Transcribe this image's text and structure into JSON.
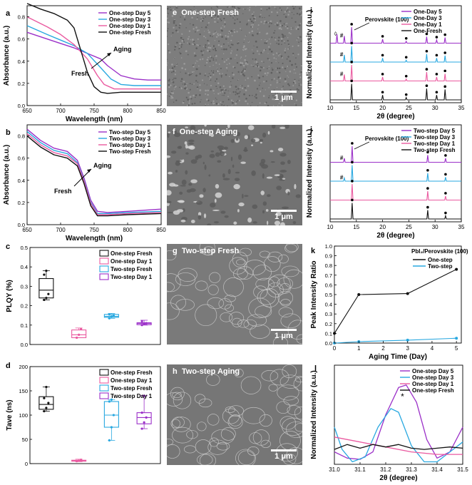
{
  "colors": {
    "day5": "#9b30c8",
    "day3": "#29a8e0",
    "day1": "#ea5aa0",
    "fresh": "#111111"
  },
  "chart_data": [
    {
      "id": "a",
      "type": "line",
      "panel_letter": "a",
      "xlabel": "Wavelength (nm)",
      "ylabel": "Absorbance (a.u.)",
      "xlim": [
        650,
        850
      ],
      "ylim": [
        0,
        0.9
      ],
      "xticks": [
        650,
        700,
        750,
        800,
        850
      ],
      "yticks": [
        0.0,
        0.2,
        0.4,
        0.6,
        0.8
      ],
      "legend": [
        "One-step Day 5",
        "One-step Day 3",
        "One-step Day 1",
        "One-step Fresh"
      ],
      "annotations": [
        "Aging",
        "Fresh"
      ],
      "series": [
        {
          "name": "One-step Day 5",
          "color_key": "day5",
          "x": [
            650,
            680,
            700,
            720,
            740,
            760,
            770,
            790,
            810,
            830,
            850
          ],
          "y": [
            0.66,
            0.6,
            0.56,
            0.52,
            0.47,
            0.42,
            0.36,
            0.27,
            0.24,
            0.23,
            0.23
          ]
        },
        {
          "name": "One-step Day 3",
          "color_key": "day3",
          "x": [
            650,
            680,
            700,
            720,
            740,
            760,
            775,
            790,
            810,
            830,
            850
          ],
          "y": [
            0.72,
            0.64,
            0.59,
            0.54,
            0.47,
            0.34,
            0.24,
            0.19,
            0.18,
            0.18,
            0.18
          ]
        },
        {
          "name": "One-step Day 1",
          "color_key": "day1",
          "x": [
            650,
            680,
            700,
            720,
            740,
            755,
            765,
            780,
            800,
            820,
            850
          ],
          "y": [
            0.8,
            0.71,
            0.64,
            0.55,
            0.42,
            0.27,
            0.19,
            0.15,
            0.15,
            0.15,
            0.15
          ]
        },
        {
          "name": "One-step Fresh",
          "color_key": "fresh",
          "x": [
            650,
            670,
            690,
            710,
            720,
            730,
            740,
            750,
            760,
            770,
            790,
            820,
            850
          ],
          "y": [
            0.92,
            0.87,
            0.83,
            0.77,
            0.7,
            0.5,
            0.3,
            0.17,
            0.12,
            0.11,
            0.12,
            0.12,
            0.12
          ]
        }
      ]
    },
    {
      "id": "b",
      "type": "line",
      "panel_letter": "b",
      "xlabel": "Wavelength (nm)",
      "ylabel": "Absorbance (a.u.)",
      "xlim": [
        650,
        850
      ],
      "ylim": [
        0,
        0.9
      ],
      "xticks": [
        650,
        700,
        750,
        800,
        850
      ],
      "yticks": [
        0.0,
        0.2,
        0.4,
        0.6,
        0.8
      ],
      "legend": [
        "Two-step Day 5",
        "Two-step Day 3",
        "Two-step Day 1",
        "Two-step Fresh"
      ],
      "annotations": [
        "Aging",
        "Fresh"
      ],
      "series": [
        {
          "name": "Two-step Day 5",
          "color_key": "day5",
          "x": [
            650,
            670,
            690,
            710,
            725,
            735,
            745,
            755,
            770,
            800,
            850
          ],
          "y": [
            0.86,
            0.76,
            0.69,
            0.66,
            0.58,
            0.42,
            0.22,
            0.12,
            0.11,
            0.12,
            0.14
          ]
        },
        {
          "name": "Two-step Day 3",
          "color_key": "day3",
          "x": [
            650,
            670,
            690,
            710,
            725,
            735,
            745,
            755,
            770,
            800,
            850
          ],
          "y": [
            0.84,
            0.74,
            0.67,
            0.64,
            0.56,
            0.4,
            0.2,
            0.1,
            0.1,
            0.11,
            0.12
          ]
        },
        {
          "name": "Two-step Day 1",
          "color_key": "day1",
          "x": [
            650,
            670,
            690,
            710,
            725,
            735,
            745,
            755,
            770,
            800,
            850
          ],
          "y": [
            0.82,
            0.72,
            0.65,
            0.62,
            0.55,
            0.39,
            0.19,
            0.09,
            0.09,
            0.1,
            0.11
          ]
        },
        {
          "name": "Two-step Fresh",
          "color_key": "fresh",
          "x": [
            650,
            670,
            690,
            710,
            725,
            735,
            745,
            755,
            770,
            800,
            850
          ],
          "y": [
            0.8,
            0.7,
            0.63,
            0.6,
            0.53,
            0.37,
            0.17,
            0.08,
            0.08,
            0.09,
            0.1
          ]
        }
      ]
    },
    {
      "id": "c",
      "type": "box",
      "panel_letter": "c",
      "ylabel": "PLQY (%)",
      "ylim": [
        0,
        0.5
      ],
      "yticks": [
        0.0,
        0.1,
        0.2,
        0.3,
        0.4,
        0.5
      ],
      "legend": [
        "One-step Fresh",
        "One-step Day 1",
        "Two-step Fresh",
        "Two-step Day 1"
      ],
      "boxes": [
        {
          "name": "One-step Fresh",
          "color_key": "fresh",
          "whisker_low": 0.23,
          "q1": 0.24,
          "median": 0.28,
          "q3": 0.34,
          "whisker_high": 0.38,
          "points": [
            0.23,
            0.24,
            0.26,
            0.36,
            0.38
          ]
        },
        {
          "name": "One-step Day 1",
          "color_key": "day1",
          "whisker_low": 0.035,
          "q1": 0.035,
          "median": 0.05,
          "q3": 0.075,
          "whisker_high": 0.085,
          "points": [
            0.035,
            0.05,
            0.08
          ]
        },
        {
          "name": "Two-step Fresh",
          "color_key": "day3",
          "whisker_low": 0.135,
          "q1": 0.14,
          "median": 0.145,
          "q3": 0.155,
          "whisker_high": 0.16,
          "points": [
            0.135,
            0.145,
            0.15,
            0.155
          ]
        },
        {
          "name": "Two-step Day 1",
          "color_key": "day5",
          "whisker_low": 0.1,
          "q1": 0.102,
          "median": 0.108,
          "q3": 0.112,
          "whisker_high": 0.125,
          "points": [
            0.1,
            0.105,
            0.11,
            0.12
          ]
        }
      ]
    },
    {
      "id": "d",
      "type": "box",
      "panel_letter": "d",
      "ylabel": "Tave (ns)",
      "ylim": [
        0,
        200
      ],
      "yticks": [
        0,
        50,
        100,
        150,
        200
      ],
      "legend": [
        "One-step Fresh",
        "One-step Day 1",
        "Two-step Fresh",
        "Two-step Day 1"
      ],
      "boxes": [
        {
          "name": "One-step Fresh",
          "color_key": "fresh",
          "whisker_low": 108,
          "q1": 112,
          "median": 122,
          "q3": 138,
          "whisker_high": 158,
          "points": [
            108,
            115,
            125,
            135,
            158
          ]
        },
        {
          "name": "One-step Day 1",
          "color_key": "day1",
          "whisker_low": 4,
          "q1": 5,
          "median": 6,
          "q3": 7,
          "whisker_high": 9,
          "points": [
            5,
            6,
            8
          ]
        },
        {
          "name": "Two-step Fresh",
          "color_key": "day3",
          "whisker_low": 48,
          "q1": 75,
          "median": 100,
          "q3": 128,
          "whisker_high": 132,
          "points": [
            48,
            75,
            100,
            128,
            132
          ]
        },
        {
          "name": "Two-step Day 1",
          "color_key": "day5",
          "whisker_low": 72,
          "q1": 82,
          "median": 95,
          "q3": 105,
          "whisker_high": 140,
          "points": [
            72,
            85,
            95,
            105,
            140
          ]
        }
      ]
    },
    {
      "id": "i",
      "type": "xrd",
      "panel_letter": "i",
      "xlabel": "2θ (degree)",
      "ylabel": "Normalized Intensity (a.u.)",
      "xlim": [
        10,
        35
      ],
      "xticks": [
        10,
        15,
        20,
        25,
        30,
        35
      ],
      "legend": [
        "One-Day 5",
        "One-Day 3",
        "One-Day 1",
        "One-Fresh"
      ],
      "annotations": [
        "Perovskite (100)",
        "◊",
        "#"
      ],
      "series": [
        {
          "name": "One-Day 5",
          "color_key": "day5",
          "x": [
            11.3,
            12.7,
            14.1,
            20.0,
            24.5,
            28.4,
            30.3,
            31.9
          ],
          "y": [
            0.55,
            0.45,
            1.0,
            0.25,
            0.12,
            0.4,
            0.2,
            0.35
          ]
        },
        {
          "name": "One-Day 3",
          "color_key": "day3",
          "x": [
            12.7,
            14.1,
            20.0,
            24.5,
            28.4,
            30.3,
            31.9
          ],
          "y": [
            0.45,
            1.0,
            0.25,
            0.12,
            0.5,
            0.25,
            0.4
          ]
        },
        {
          "name": "One-Day 1",
          "color_key": "day1",
          "x": [
            12.7,
            14.1,
            20.0,
            24.5,
            28.4,
            30.3,
            31.9
          ],
          "y": [
            0.4,
            1.0,
            0.25,
            0.12,
            0.55,
            0.25,
            0.45
          ]
        },
        {
          "name": "One-Fresh",
          "color_key": "fresh",
          "x": [
            14.1,
            20.0,
            24.5,
            28.4,
            30.3,
            31.9
          ],
          "y": [
            1.0,
            0.3,
            0.15,
            0.7,
            0.3,
            0.65
          ]
        }
      ]
    },
    {
      "id": "j",
      "type": "xrd",
      "panel_letter": "j",
      "xlabel": "2θ (degree)",
      "ylabel": "Normalized Intensity (a.u.)",
      "xlim": [
        10,
        35
      ],
      "xticks": [
        10,
        15,
        20,
        25,
        30,
        35
      ],
      "legend": [
        "Two-step Day 5",
        "Two-step Day 3",
        "Two-step Day 1",
        "Two-step Fresh"
      ],
      "annotations": [
        "Perovskite (100)",
        "#"
      ],
      "series": [
        {
          "name": "Two-step Day 5",
          "color_key": "day5",
          "x": [
            12.7,
            14.2,
            28.6,
            32.0
          ],
          "y": [
            0.25,
            1.0,
            0.45,
            0.25
          ]
        },
        {
          "name": "Two-step Day 3",
          "color_key": "day3",
          "x": [
            12.7,
            14.2,
            28.6,
            32.0
          ],
          "y": [
            0.2,
            1.0,
            0.5,
            0.25
          ]
        },
        {
          "name": "Two-step Day 1",
          "color_key": "day1",
          "x": [
            14.2,
            28.6,
            32.0
          ],
          "y": [
            1.0,
            0.55,
            0.25
          ]
        },
        {
          "name": "Two-step Fresh",
          "color_key": "fresh",
          "x": [
            14.2,
            28.6,
            32.0
          ],
          "y": [
            1.0,
            0.55,
            0.2
          ]
        }
      ]
    },
    {
      "id": "k",
      "type": "line",
      "panel_letter": "k",
      "xlabel": "Aging Time (Day)",
      "ylabel": "Peak Intensity Ratio",
      "xlim": [
        0,
        5.2
      ],
      "ylim": [
        0,
        1.0
      ],
      "xticks": [
        0,
        1,
        2,
        3,
        4,
        5
      ],
      "yticks": [
        0.0,
        0.1,
        0.2,
        0.3,
        0.4,
        0.5,
        0.6,
        0.7,
        0.8,
        0.9,
        1.0
      ],
      "legend_title": "PbI₂/Perovskite (100)",
      "legend": [
        "One-step",
        "Two-step"
      ],
      "series": [
        {
          "name": "One-step",
          "color_key": "fresh",
          "x": [
            0,
            1,
            3,
            5
          ],
          "y": [
            0.1,
            0.5,
            0.51,
            0.76
          ]
        },
        {
          "name": "Two-step",
          "color_key": "day3",
          "x": [
            0,
            1,
            3,
            5
          ],
          "y": [
            0.0,
            0.015,
            0.03,
            0.05
          ]
        }
      ]
    },
    {
      "id": "l",
      "type": "line",
      "panel_letter": "l",
      "xlabel": "2θ (degree)",
      "ylabel": "Normalized Intensity (a.u.)",
      "xlim": [
        31.0,
        31.5
      ],
      "xticks": [
        31.0,
        31.1,
        31.2,
        31.3,
        31.4,
        31.5
      ],
      "annotations": [
        "*"
      ],
      "legend": [
        "One-step Day 5",
        "One-step Day 3",
        "One-step Day 1",
        "One-step Fresh"
      ],
      "series": [
        {
          "name": "One-step Day 5",
          "color_key": "day5",
          "x": [
            31.0,
            31.05,
            31.1,
            31.15,
            31.2,
            31.25,
            31.28,
            31.32,
            31.36,
            31.4,
            31.45,
            31.5
          ],
          "y": [
            0.1,
            0.05,
            0.04,
            0.1,
            0.4,
            0.62,
            0.64,
            0.5,
            0.2,
            0.05,
            0.1,
            0.3
          ]
        },
        {
          "name": "One-step Day 3",
          "color_key": "day3",
          "x": [
            31.0,
            31.03,
            31.07,
            31.12,
            31.17,
            31.22,
            31.25,
            31.3,
            31.35,
            31.4,
            31.45,
            31.5
          ],
          "y": [
            0.3,
            0.12,
            0.02,
            0.06,
            0.3,
            0.45,
            0.42,
            0.15,
            0.02,
            0.02,
            0.1,
            0.18
          ]
        },
        {
          "name": "One-step Day 1",
          "color_key": "day1",
          "x": [
            31.0,
            31.1,
            31.2,
            31.3,
            31.4,
            31.5
          ],
          "y": [
            0.22,
            0.18,
            0.14,
            0.1,
            0.08,
            0.08
          ]
        },
        {
          "name": "One-step Fresh",
          "color_key": "fresh",
          "x": [
            31.0,
            31.05,
            31.1,
            31.15,
            31.2,
            31.25,
            31.3,
            31.35,
            31.4,
            31.45,
            31.5
          ],
          "y": [
            0.12,
            0.16,
            0.13,
            0.16,
            0.14,
            0.16,
            0.13,
            0.12,
            0.13,
            0.14,
            0.13
          ]
        }
      ]
    }
  ],
  "sem_images": [
    {
      "letter": "e",
      "title": "One-step Fresh",
      "scale": "1 μm"
    },
    {
      "letter": "f",
      "title": "One-step Aging",
      "scale": "1 μm"
    },
    {
      "letter": "g",
      "title": "Two-step Fresh",
      "scale": "1 μm"
    },
    {
      "letter": "h",
      "title": "Two-step Aging",
      "scale": "1 μm"
    }
  ]
}
